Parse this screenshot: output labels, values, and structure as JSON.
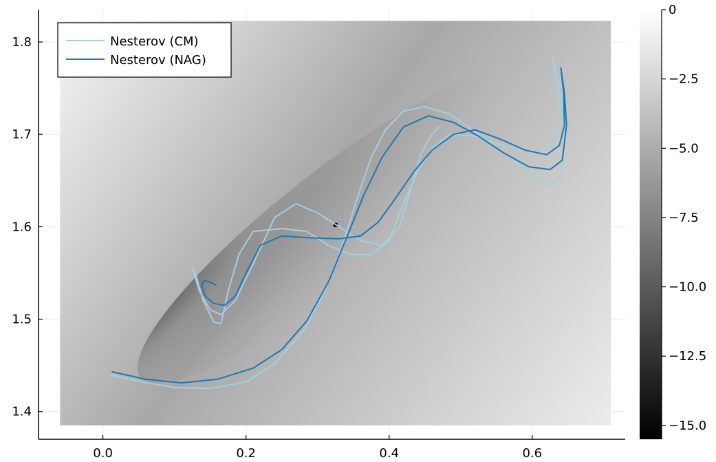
{
  "chart_data": {
    "type": "line",
    "title": "",
    "xlabel": "",
    "ylabel": "",
    "xlim": [
      -0.09,
      0.73
    ],
    "ylim": [
      1.37,
      1.835
    ],
    "xticks": [
      0.0,
      0.2,
      0.4,
      0.6
    ],
    "xtick_labels": [
      "0.0",
      "0.2",
      "0.4",
      "0.6"
    ],
    "yticks": [
      1.4,
      1.5,
      1.6,
      1.7,
      1.8
    ],
    "ytick_labels": [
      "1.4",
      "1.5",
      "1.6",
      "1.7",
      "1.8"
    ],
    "grid": true,
    "legend_position": "top-left",
    "heatmap": {
      "x_range": [
        -0.06,
        0.71
      ],
      "y_range": [
        1.385,
        1.823
      ],
      "minimum_at": [
        0.325,
        1.602
      ],
      "colormap": "grayscale",
      "colorbar": {
        "min": -15.5,
        "max": 0,
        "ticks": [
          0,
          -2.5,
          -5.0,
          -7.5,
          -10.0,
          -12.5,
          -15.0
        ],
        "tick_labels": [
          "0",
          "−2.5",
          "−5.0",
          "−7.5",
          "−10.0",
          "−12.5",
          "−15.0"
        ]
      }
    },
    "series": [
      {
        "name": "Nesterov (CM)",
        "color": "#a6cee3",
        "points": [
          [
            0.01,
            1.44
          ],
          [
            0.05,
            1.433
          ],
          [
            0.1,
            1.426
          ],
          [
            0.15,
            1.425
          ],
          [
            0.2,
            1.432
          ],
          [
            0.24,
            1.452
          ],
          [
            0.28,
            1.487
          ],
          [
            0.31,
            1.53
          ],
          [
            0.335,
            1.58
          ],
          [
            0.355,
            1.63
          ],
          [
            0.375,
            1.675
          ],
          [
            0.395,
            1.705
          ],
          [
            0.42,
            1.725
          ],
          [
            0.45,
            1.73
          ],
          [
            0.485,
            1.722
          ],
          [
            0.52,
            1.703
          ],
          [
            0.56,
            1.68
          ],
          [
            0.6,
            1.655
          ],
          [
            0.625,
            1.645
          ],
          [
            0.642,
            1.655
          ],
          [
            0.646,
            1.7
          ],
          [
            0.64,
            1.75
          ],
          [
            0.628,
            1.785
          ],
          [
            0.633,
            1.76
          ],
          [
            0.64,
            1.72
          ],
          [
            0.63,
            1.69
          ],
          [
            0.6,
            1.68
          ],
          [
            0.56,
            1.688
          ],
          [
            0.52,
            1.698
          ],
          [
            0.485,
            1.7
          ],
          [
            0.46,
            1.685
          ],
          [
            0.44,
            1.66
          ],
          [
            0.42,
            1.625
          ],
          [
            0.4,
            1.585
          ],
          [
            0.375,
            1.57
          ],
          [
            0.345,
            1.57
          ],
          [
            0.315,
            1.58
          ],
          [
            0.285,
            1.595
          ],
          [
            0.25,
            1.598
          ],
          [
            0.21,
            1.595
          ],
          [
            0.19,
            1.57
          ],
          [
            0.175,
            1.53
          ],
          [
            0.165,
            1.495
          ],
          [
            0.155,
            1.497
          ],
          [
            0.14,
            1.52
          ],
          [
            0.13,
            1.548
          ],
          [
            0.125,
            1.555
          ],
          [
            0.135,
            1.53
          ],
          [
            0.15,
            1.51
          ],
          [
            0.165,
            1.505
          ],
          [
            0.185,
            1.52
          ],
          [
            0.21,
            1.56
          ],
          [
            0.24,
            1.61
          ],
          [
            0.27,
            1.625
          ],
          [
            0.3,
            1.615
          ],
          [
            0.33,
            1.6
          ],
          [
            0.36,
            1.585
          ],
          [
            0.39,
            1.58
          ],
          [
            0.415,
            1.6
          ],
          [
            0.43,
            1.64
          ],
          [
            0.445,
            1.68
          ],
          [
            0.46,
            1.7
          ],
          [
            0.47,
            1.708
          ]
        ]
      },
      {
        "name": "Nesterov (NAG)",
        "color": "#1f78b4",
        "points": [
          [
            0.013,
            1.443
          ],
          [
            0.06,
            1.435
          ],
          [
            0.11,
            1.431
          ],
          [
            0.16,
            1.435
          ],
          [
            0.21,
            1.447
          ],
          [
            0.25,
            1.467
          ],
          [
            0.285,
            1.498
          ],
          [
            0.315,
            1.54
          ],
          [
            0.34,
            1.587
          ],
          [
            0.365,
            1.635
          ],
          [
            0.39,
            1.675
          ],
          [
            0.42,
            1.708
          ],
          [
            0.455,
            1.72
          ],
          [
            0.49,
            1.713
          ],
          [
            0.525,
            1.698
          ],
          [
            0.56,
            1.68
          ],
          [
            0.595,
            1.665
          ],
          [
            0.625,
            1.662
          ],
          [
            0.642,
            1.672
          ],
          [
            0.648,
            1.71
          ],
          [
            0.645,
            1.745
          ],
          [
            0.64,
            1.772
          ],
          [
            0.644,
            1.745
          ],
          [
            0.645,
            1.71
          ],
          [
            0.638,
            1.688
          ],
          [
            0.62,
            1.678
          ],
          [
            0.59,
            1.683
          ],
          [
            0.555,
            1.695
          ],
          [
            0.52,
            1.705
          ],
          [
            0.49,
            1.7
          ],
          [
            0.46,
            1.683
          ],
          [
            0.435,
            1.66
          ],
          [
            0.41,
            1.632
          ],
          [
            0.385,
            1.605
          ],
          [
            0.36,
            1.59
          ],
          [
            0.33,
            1.587
          ],
          [
            0.29,
            1.588
          ],
          [
            0.25,
            1.59
          ],
          [
            0.22,
            1.58
          ],
          [
            0.2,
            1.55
          ],
          [
            0.185,
            1.525
          ],
          [
            0.17,
            1.515
          ],
          [
            0.155,
            1.517
          ],
          [
            0.143,
            1.525
          ],
          [
            0.138,
            1.537
          ],
          [
            0.142,
            1.542
          ],
          [
            0.15,
            1.54
          ],
          [
            0.158,
            1.537
          ]
        ]
      }
    ]
  }
}
